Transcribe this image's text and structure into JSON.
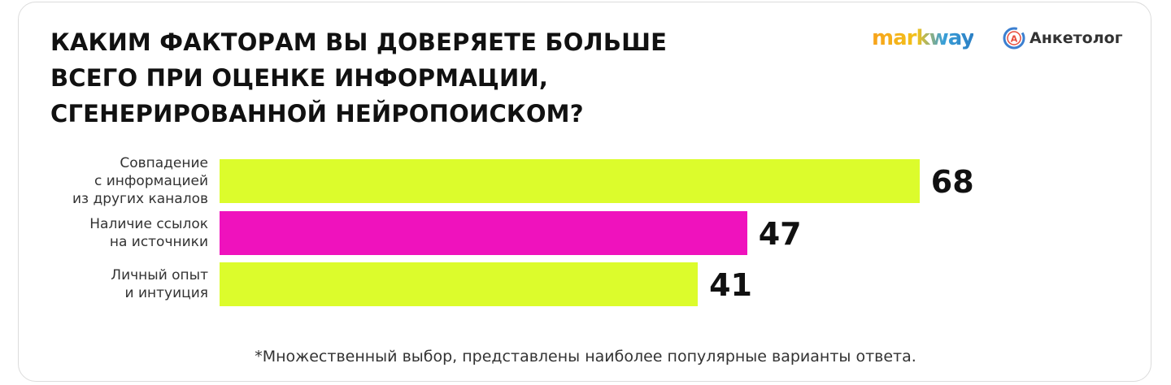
{
  "chart_data": {
    "type": "bar",
    "orientation": "horizontal",
    "title": "КАКИМ ФАКТОРАМ ВЫ ДОВЕРЯЕТЕ БОЛЬШЕ\nВСЕГО ПРИ ОЦЕНКЕ ИНФОРМАЦИИ,\nСГЕНЕРИРОВАННОЙ НЕЙРОПОИСКОМ?",
    "logos": [
      "markway",
      "Анкетолог"
    ],
    "categories": [
      "Совпадение\nс информацией\nиз других каналов",
      "Наличие ссылок\nна источники",
      "Личный опыт\nи интуиция"
    ],
    "values": [
      68,
      47,
      41
    ],
    "colors": [
      "#dcfc2c",
      "#ef12bd",
      "#dcfc2c"
    ],
    "footnote": "*Множественный выбор, представлены наиболее популярные варианты ответа."
  }
}
